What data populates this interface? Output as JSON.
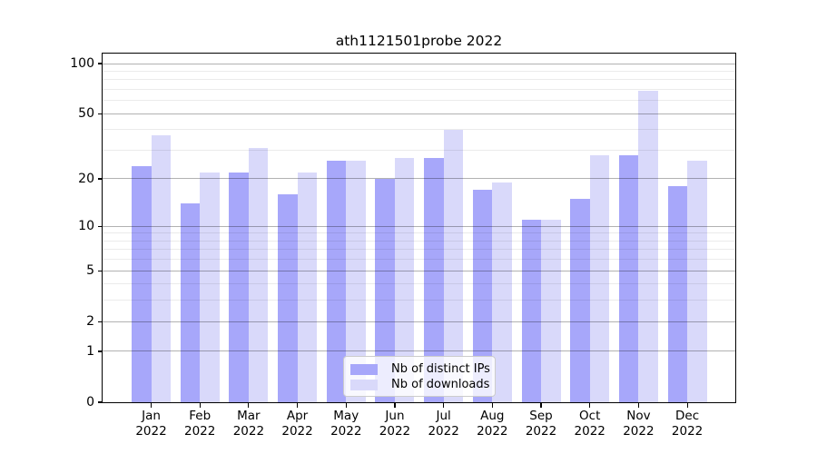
{
  "chart_data": {
    "type": "bar",
    "title": "ath1121501probe 2022",
    "categories": [
      "Jan",
      "Feb",
      "Mar",
      "Apr",
      "May",
      "Jun",
      "Jul",
      "Aug",
      "Sep",
      "Oct",
      "Nov",
      "Dec"
    ],
    "x_tick_second_line": "2022",
    "series": [
      {
        "name": "Nb of distinct IPs",
        "color": "#a7a7fa",
        "values": [
          24,
          14,
          22,
          16,
          26,
          20,
          27,
          17,
          11,
          15,
          28,
          18
        ]
      },
      {
        "name": "Nb of downloads",
        "color": "#d9d9fa",
        "values": [
          37,
          22,
          31,
          22,
          26,
          27,
          40,
          19,
          11,
          28,
          69,
          26
        ]
      }
    ],
    "yscale": "log1p",
    "ylim": [
      0,
      100
    ],
    "yticks": [
      0,
      1,
      2,
      5,
      10,
      20,
      50,
      100
    ],
    "yticks_minor": [
      3,
      4,
      6,
      7,
      8,
      9,
      30,
      40,
      60,
      70,
      80,
      90
    ],
    "grid": true,
    "legend_position": "lower center"
  },
  "legend": {
    "entries": [
      {
        "label": "Nb of distinct IPs"
      },
      {
        "label": "Nb of downloads"
      }
    ]
  }
}
